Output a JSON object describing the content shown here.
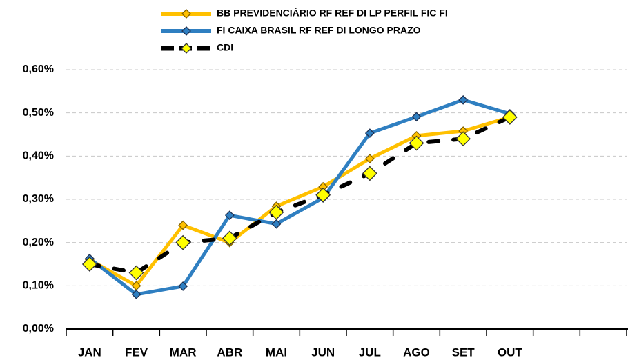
{
  "chart_data": {
    "type": "line",
    "categories": [
      "JAN",
      "FEV",
      "MAR",
      "ABR",
      "MAI",
      "JUN",
      "JUL",
      "AGO",
      "SET",
      "OUT",
      null,
      null
    ],
    "series": [
      {
        "name": "BB PREVIDENCIÁRIO RF REF DI LP PERFIL FIC FI",
        "color": "#ffc000",
        "values": [
          0.16,
          0.1,
          0.24,
          0.2,
          0.284,
          0.329,
          0.394,
          0.447,
          0.458,
          0.49,
          null,
          null
        ]
      },
      {
        "name": "FI CAIXA BRASIL RF REF DI LONGO PRAZO",
        "color": "#2f7fc1",
        "values": [
          0.163,
          0.08,
          0.099,
          0.263,
          0.243,
          0.303,
          0.453,
          0.491,
          0.53,
          0.498,
          null,
          null
        ]
      },
      {
        "name": "CDI",
        "color": "#000000",
        "values": [
          0.15,
          0.13,
          0.2,
          0.21,
          0.27,
          0.31,
          0.36,
          0.43,
          0.44,
          0.49,
          null,
          null
        ]
      }
    ],
    "ylim": [
      0,
      0.6
    ],
    "yticks": [
      {
        "value": 0,
        "label": "0,00%"
      },
      {
        "value": 0.1,
        "label": "0,10%"
      },
      {
        "value": 0.2,
        "label": "0,20%"
      },
      {
        "value": 0.3,
        "label": "0,30%"
      },
      {
        "value": 0.4,
        "label": "0,40%"
      },
      {
        "value": 0.5,
        "label": "0,50%"
      },
      {
        "value": 0.6,
        "label": "0,60%"
      }
    ],
    "grid": true
  }
}
